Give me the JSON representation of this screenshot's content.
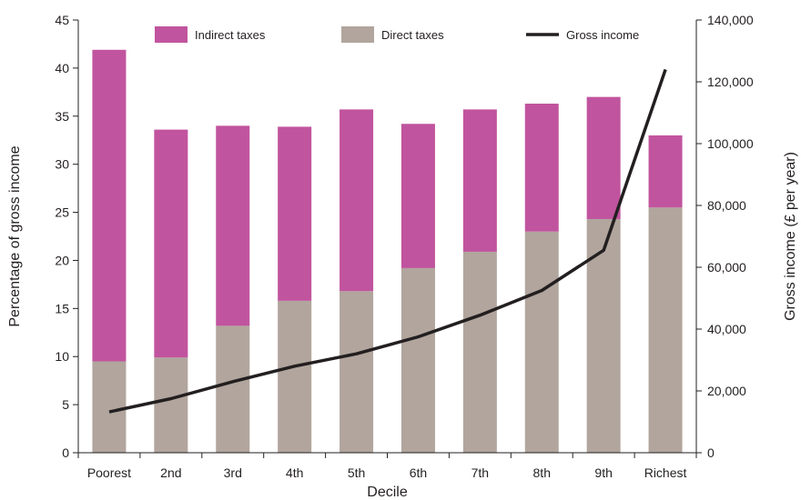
{
  "chart_data": {
    "type": "bar",
    "stacked": true,
    "xlabel": "Decile",
    "ylabel": "Percentage of gross income",
    "y2label": "Gross income (£ per year)",
    "ylim": [
      0,
      45
    ],
    "y2lim": [
      0,
      140000
    ],
    "yticks": [
      "0",
      "5",
      "10",
      "15",
      "20",
      "25",
      "30",
      "35",
      "40",
      "45"
    ],
    "y2ticks": [
      "0",
      "20,000",
      "40,000",
      "60,000",
      "80,000",
      "100,000",
      "120,000",
      "140,000"
    ],
    "categories": [
      "Poorest",
      "2nd",
      "3rd",
      "4th",
      "5th",
      "6th",
      "7th",
      "8th",
      "9th",
      "Richest"
    ],
    "series": [
      {
        "name": "Direct taxes",
        "kind": "bar",
        "color": "#b1a59d",
        "values": [
          9.5,
          9.9,
          13.2,
          15.8,
          16.8,
          19.2,
          20.9,
          23.0,
          24.3,
          25.5
        ]
      },
      {
        "name": "Indirect taxes",
        "kind": "bar",
        "color": "#c1549e",
        "values": [
          32.4,
          23.7,
          20.8,
          18.1,
          18.9,
          15.0,
          14.8,
          13.3,
          12.7,
          7.5
        ]
      },
      {
        "name": "Gross income",
        "kind": "line",
        "axis": "right",
        "color": "#231f20",
        "values": [
          13200,
          17500,
          23000,
          28000,
          32000,
          37500,
          44500,
          52500,
          65500,
          124000
        ]
      }
    ],
    "legend": [
      {
        "label": "Indirect taxes",
        "swatch": "rect",
        "color": "#c1549e"
      },
      {
        "label": "Direct taxes",
        "swatch": "rect",
        "color": "#b1a59d"
      },
      {
        "label": "Gross income",
        "swatch": "line",
        "color": "#231f20"
      }
    ],
    "legend_position": "top",
    "grid": false
  }
}
